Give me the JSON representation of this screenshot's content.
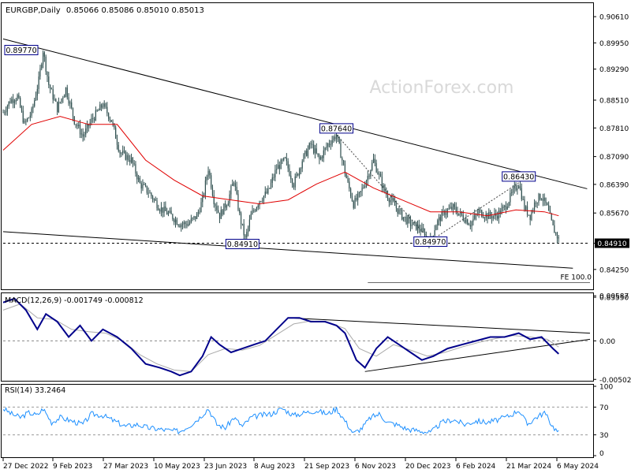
{
  "header": {
    "symbol": "EURGBP,Daily",
    "ohlc": "0.85066 0.85086 0.85010 0.85013"
  },
  "watermark": "ActionForex.com",
  "colors": {
    "candle": "#2f4f4f",
    "ma": "#e00000",
    "trendline": "#000000",
    "macd_main": "#00008b",
    "macd_signal": "#aaaaaa",
    "rsi": "#1e90ff",
    "label_box": "#00008b"
  },
  "chart_data": [
    {
      "type": "candlestick",
      "panel": "price",
      "ylim": [
        0.8375,
        0.9095
      ],
      "y_ticks": [
        "0.90610",
        "0.89950",
        "0.89290",
        "0.88510",
        "0.87810",
        "0.87090",
        "0.86390",
        "0.85670",
        "0.84910",
        "0.84250",
        "0.83550"
      ],
      "x_ticks": [
        "27 Dec 2022",
        "9 Feb 2023",
        "27 Mar 2023",
        "10 May 2023",
        "23 Jun 2023",
        "8 Aug 2023",
        "21 Sep 2023",
        "6 Nov 2023",
        "20 Dec 2023",
        "6 Feb 2024",
        "21 Mar 2024",
        "6 May 2024"
      ],
      "close_series": [
        {
          "d": 0,
          "v": 0.882
        },
        {
          "d": 5,
          "v": 0.885
        },
        {
          "d": 10,
          "v": 0.886
        },
        {
          "d": 15,
          "v": 0.879
        },
        {
          "d": 20,
          "v": 0.882
        },
        {
          "d": 25,
          "v": 0.89
        },
        {
          "d": 28,
          "v": 0.8977
        },
        {
          "d": 32,
          "v": 0.889
        },
        {
          "d": 38,
          "v": 0.883
        },
        {
          "d": 44,
          "v": 0.888
        },
        {
          "d": 50,
          "v": 0.88
        },
        {
          "d": 56,
          "v": 0.876
        },
        {
          "d": 62,
          "v": 0.88
        },
        {
          "d": 70,
          "v": 0.884
        },
        {
          "d": 76,
          "v": 0.88
        },
        {
          "d": 82,
          "v": 0.872
        },
        {
          "d": 90,
          "v": 0.87
        },
        {
          "d": 96,
          "v": 0.864
        },
        {
          "d": 102,
          "v": 0.862
        },
        {
          "d": 110,
          "v": 0.858
        },
        {
          "d": 118,
          "v": 0.856
        },
        {
          "d": 124,
          "v": 0.854
        },
        {
          "d": 130,
          "v": 0.854
        },
        {
          "d": 136,
          "v": 0.856
        },
        {
          "d": 140,
          "v": 0.86
        },
        {
          "d": 144,
          "v": 0.868
        },
        {
          "d": 148,
          "v": 0.86
        },
        {
          "d": 152,
          "v": 0.856
        },
        {
          "d": 158,
          "v": 0.86
        },
        {
          "d": 162,
          "v": 0.865
        },
        {
          "d": 166,
          "v": 0.856
        },
        {
          "d": 170,
          "v": 0.85
        },
        {
          "d": 174,
          "v": 0.856
        },
        {
          "d": 180,
          "v": 0.86
        },
        {
          "d": 186,
          "v": 0.862
        },
        {
          "d": 192,
          "v": 0.868
        },
        {
          "d": 198,
          "v": 0.87
        },
        {
          "d": 204,
          "v": 0.864
        },
        {
          "d": 210,
          "v": 0.87
        },
        {
          "d": 216,
          "v": 0.874
        },
        {
          "d": 222,
          "v": 0.87
        },
        {
          "d": 228,
          "v": 0.874
        },
        {
          "d": 234,
          "v": 0.8764
        },
        {
          "d": 238,
          "v": 0.87
        },
        {
          "d": 242,
          "v": 0.864
        },
        {
          "d": 246,
          "v": 0.859
        },
        {
          "d": 250,
          "v": 0.861
        },
        {
          "d": 256,
          "v": 0.866
        },
        {
          "d": 260,
          "v": 0.87
        },
        {
          "d": 264,
          "v": 0.866
        },
        {
          "d": 268,
          "v": 0.862
        },
        {
          "d": 274,
          "v": 0.859
        },
        {
          "d": 280,
          "v": 0.856
        },
        {
          "d": 286,
          "v": 0.854
        },
        {
          "d": 292,
          "v": 0.853
        },
        {
          "d": 296,
          "v": 0.851
        },
        {
          "d": 300,
          "v": 0.8497
        },
        {
          "d": 304,
          "v": 0.854
        },
        {
          "d": 310,
          "v": 0.857
        },
        {
          "d": 316,
          "v": 0.858
        },
        {
          "d": 322,
          "v": 0.856
        },
        {
          "d": 328,
          "v": 0.854
        },
        {
          "d": 334,
          "v": 0.857
        },
        {
          "d": 340,
          "v": 0.856
        },
        {
          "d": 346,
          "v": 0.856
        },
        {
          "d": 352,
          "v": 0.858
        },
        {
          "d": 358,
          "v": 0.862
        },
        {
          "d": 362,
          "v": 0.8643
        },
        {
          "d": 366,
          "v": 0.858
        },
        {
          "d": 370,
          "v": 0.856
        },
        {
          "d": 374,
          "v": 0.86
        },
        {
          "d": 378,
          "v": 0.861
        },
        {
          "d": 382,
          "v": 0.858
        },
        {
          "d": 386,
          "v": 0.853
        },
        {
          "d": 390,
          "v": 0.8501
        }
      ],
      "moving_average": [
        {
          "d": 0,
          "v": 0.8725
        },
        {
          "d": 20,
          "v": 0.879
        },
        {
          "d": 40,
          "v": 0.881
        },
        {
          "d": 60,
          "v": 0.879
        },
        {
          "d": 80,
          "v": 0.879
        },
        {
          "d": 100,
          "v": 0.87
        },
        {
          "d": 120,
          "v": 0.865
        },
        {
          "d": 140,
          "v": 0.861
        },
        {
          "d": 160,
          "v": 0.86
        },
        {
          "d": 180,
          "v": 0.859
        },
        {
          "d": 200,
          "v": 0.86
        },
        {
          "d": 220,
          "v": 0.864
        },
        {
          "d": 240,
          "v": 0.867
        },
        {
          "d": 260,
          "v": 0.863
        },
        {
          "d": 280,
          "v": 0.86
        },
        {
          "d": 300,
          "v": 0.857
        },
        {
          "d": 320,
          "v": 0.857
        },
        {
          "d": 340,
          "v": 0.856
        },
        {
          "d": 360,
          "v": 0.8575
        },
        {
          "d": 380,
          "v": 0.857
        },
        {
          "d": 390,
          "v": 0.856
        }
      ],
      "annotations": [
        {
          "label": "0.89770",
          "d": 28,
          "v": 0.8977
        },
        {
          "label": "0.87640",
          "d": 234,
          "v": 0.8764
        },
        {
          "label": "0.86430",
          "d": 362,
          "v": 0.8643
        },
        {
          "label": "0.84970",
          "d": 300,
          "v": 0.8497
        },
        {
          "label": "0.84910",
          "d": 168,
          "v": 0.8491
        }
      ],
      "trendlines": [
        {
          "from": {
            "d": 0,
            "v": 0.9005
          },
          "to": {
            "d": 410,
            "v": 0.8628
          }
        },
        {
          "from": {
            "d": 0,
            "v": 0.852
          },
          "to": {
            "d": 400,
            "v": 0.8428
          }
        },
        {
          "from": {
            "d": 0,
            "v": 0.8491
          },
          "to": {
            "d": 412,
            "v": 0.8491
          },
          "style": "dashed"
        },
        {
          "from": {
            "d": 234,
            "v": 0.8764
          },
          "to": {
            "d": 300,
            "v": 0.8497
          },
          "style": "dotted"
        },
        {
          "from": {
            "d": 300,
            "v": 0.8497
          },
          "to": {
            "d": 362,
            "v": 0.8643
          },
          "style": "dotted"
        },
        {
          "from": {
            "d": 256,
            "v": 0.8392
          },
          "to": {
            "d": 412,
            "v": 0.8392
          },
          "style": "thin"
        }
      ],
      "fe_label": "FE 100.0",
      "current_price_tag": "0.84910"
    },
    {
      "type": "line",
      "panel": "macd",
      "title": "MACD(12,26,9) -0.001749 -0.000812",
      "ylim": [
        -0.0052,
        0.0062
      ],
      "y_ticks": [
        "0.00587",
        "0.00",
        "-0.005021"
      ],
      "series": [
        {
          "name": "main",
          "values": [
            [
              0,
              0.005
            ],
            [
              8,
              0.0055
            ],
            [
              16,
              0.004
            ],
            [
              24,
              0.0015
            ],
            [
              30,
              0.0035
            ],
            [
              38,
              0.0025
            ],
            [
              46,
              0.0005
            ],
            [
              54,
              0.002
            ],
            [
              62,
              0.0
            ],
            [
              70,
              0.0015
            ],
            [
              80,
              0.0005
            ],
            [
              90,
              -0.001
            ],
            [
              100,
              -0.003
            ],
            [
              110,
              -0.0035
            ],
            [
              118,
              -0.004
            ],
            [
              124,
              -0.0045
            ],
            [
              132,
              -0.004
            ],
            [
              140,
              -0.002
            ],
            [
              146,
              0.0005
            ],
            [
              152,
              -0.0005
            ],
            [
              160,
              -0.0015
            ],
            [
              168,
              -0.001
            ],
            [
              176,
              -0.0005
            ],
            [
              184,
              0.0
            ],
            [
              192,
              0.0015
            ],
            [
              200,
              0.003
            ],
            [
              208,
              0.003
            ],
            [
              216,
              0.0025
            ],
            [
              226,
              0.0025
            ],
            [
              234,
              0.002
            ],
            [
              240,
              0.001
            ],
            [
              248,
              -0.0025
            ],
            [
              254,
              -0.0035
            ],
            [
              262,
              -0.001
            ],
            [
              270,
              0.0005
            ],
            [
              278,
              -0.0005
            ],
            [
              286,
              -0.0015
            ],
            [
              294,
              -0.0025
            ],
            [
              302,
              -0.002
            ],
            [
              312,
              -0.001
            ],
            [
              322,
              -0.0005
            ],
            [
              332,
              0.0
            ],
            [
              342,
              0.0005
            ],
            [
              352,
              0.0005
            ],
            [
              362,
              0.001
            ],
            [
              370,
              0.0002
            ],
            [
              378,
              0.0005
            ],
            [
              386,
              -0.001
            ],
            [
              390,
              -0.0017
            ]
          ]
        },
        {
          "name": "signal",
          "values": [
            [
              0,
              0.004
            ],
            [
              12,
              0.0048
            ],
            [
              24,
              0.003
            ],
            [
              36,
              0.0028
            ],
            [
              48,
              0.0015
            ],
            [
              60,
              0.0012
            ],
            [
              72,
              0.001
            ],
            [
              84,
              0.0
            ],
            [
              96,
              -0.0018
            ],
            [
              108,
              -0.003
            ],
            [
              120,
              -0.0038
            ],
            [
              132,
              -0.004
            ],
            [
              144,
              -0.0018
            ],
            [
              156,
              -0.001
            ],
            [
              168,
              -0.0012
            ],
            [
              180,
              -0.0006
            ],
            [
              192,
              0.0008
            ],
            [
              204,
              0.0022
            ],
            [
              216,
              0.0026
            ],
            [
              228,
              0.0024
            ],
            [
              240,
              0.0016
            ],
            [
              250,
              -0.001
            ],
            [
              262,
              -0.002
            ],
            [
              274,
              -0.0005
            ],
            [
              286,
              -0.0012
            ],
            [
              298,
              -0.002
            ],
            [
              310,
              -0.0015
            ],
            [
              322,
              -0.0008
            ],
            [
              334,
              -0.0002
            ],
            [
              346,
              0.0003
            ],
            [
              358,
              0.0007
            ],
            [
              370,
              0.0005
            ],
            [
              382,
              0.0002
            ],
            [
              390,
              -0.0008
            ]
          ]
        }
      ],
      "trendlines": [
        {
          "from": {
            "d": 200,
            "v": 0.003
          },
          "to": {
            "d": 412,
            "v": 0.001
          }
        },
        {
          "from": {
            "d": 254,
            "v": -0.004
          },
          "to": {
            "d": 412,
            "v": 0.0002
          }
        }
      ]
    },
    {
      "type": "line",
      "panel": "rsi",
      "title": "RSI(14) 33.2464",
      "ylim": [
        0,
        100
      ],
      "y_ticks": [
        "100",
        "70",
        "30",
        "0"
      ],
      "series": [
        {
          "name": "rsi",
          "values": [
            [
              0,
              68
            ],
            [
              6,
              60
            ],
            [
              12,
              55
            ],
            [
              18,
              62
            ],
            [
              24,
              58
            ],
            [
              28,
              68
            ],
            [
              34,
              48
            ],
            [
              40,
              55
            ],
            [
              48,
              50
            ],
            [
              56,
              45
            ],
            [
              62,
              60
            ],
            [
              70,
              58
            ],
            [
              78,
              50
            ],
            [
              86,
              42
            ],
            [
              94,
              45
            ],
            [
              102,
              40
            ],
            [
              110,
              38
            ],
            [
              118,
              36
            ],
            [
              124,
              35
            ],
            [
              132,
              45
            ],
            [
              138,
              55
            ],
            [
              144,
              68
            ],
            [
              150,
              45
            ],
            [
              156,
              40
            ],
            [
              162,
              55
            ],
            [
              168,
              42
            ],
            [
              174,
              55
            ],
            [
              180,
              58
            ],
            [
              188,
              60
            ],
            [
              196,
              68
            ],
            [
              204,
              58
            ],
            [
              212,
              62
            ],
            [
              220,
              65
            ],
            [
              228,
              60
            ],
            [
              234,
              68
            ],
            [
              240,
              50
            ],
            [
              246,
              32
            ],
            [
              252,
              40
            ],
            [
              258,
              55
            ],
            [
              264,
              60
            ],
            [
              270,
              48
            ],
            [
              276,
              45
            ],
            [
              284,
              38
            ],
            [
              292,
              36
            ],
            [
              300,
              33
            ],
            [
              308,
              48
            ],
            [
              316,
              52
            ],
            [
              324,
              45
            ],
            [
              332,
              50
            ],
            [
              340,
              48
            ],
            [
              348,
              52
            ],
            [
              356,
              58
            ],
            [
              362,
              66
            ],
            [
              368,
              45
            ],
            [
              374,
              55
            ],
            [
              380,
              62
            ],
            [
              386,
              42
            ],
            [
              390,
              33
            ]
          ]
        }
      ]
    }
  ]
}
